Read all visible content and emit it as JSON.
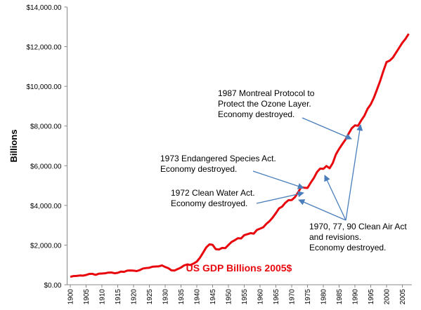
{
  "chart_data": {
    "type": "line",
    "title": "US GDP Billions 2005$",
    "ylabel": "Billions",
    "x": [
      1900,
      1901,
      1902,
      1903,
      1904,
      1905,
      1906,
      1907,
      1908,
      1909,
      1910,
      1911,
      1912,
      1913,
      1914,
      1915,
      1916,
      1917,
      1918,
      1919,
      1920,
      1921,
      1922,
      1923,
      1924,
      1925,
      1926,
      1927,
      1928,
      1929,
      1930,
      1931,
      1932,
      1933,
      1934,
      1935,
      1936,
      1937,
      1938,
      1939,
      1940,
      1941,
      1942,
      1943,
      1944,
      1945,
      1946,
      1947,
      1948,
      1949,
      1950,
      1951,
      1952,
      1953,
      1954,
      1955,
      1956,
      1957,
      1958,
      1959,
      1960,
      1961,
      1962,
      1963,
      1964,
      1965,
      1966,
      1967,
      1968,
      1969,
      1970,
      1971,
      1972,
      1973,
      1974,
      1975,
      1976,
      1977,
      1978,
      1979,
      1980,
      1981,
      1982,
      1983,
      1984,
      1985,
      1986,
      1987,
      1988,
      1989,
      1990,
      1991,
      1992,
      1993,
      1994,
      1995,
      1996,
      1997,
      1998,
      1999,
      2000,
      2001,
      2002,
      2003,
      2004,
      2005,
      2006,
      2007
    ],
    "series": [
      {
        "name": "US GDP Billions 2005$",
        "color": "#e8070d",
        "values": [
          400,
          440,
          445,
          465,
          460,
          490,
          545,
          550,
          500,
          555,
          565,
          580,
          610,
          620,
          580,
          600,
          660,
          650,
          710,
          720,
          710,
          690,
          740,
          820,
          840,
          860,
          910,
          920,
          930,
          977,
          893,
          835,
          725,
          716,
          794,
          865,
          977,
          1027,
          993,
          1072,
          1166,
          1366,
          1618,
          1883,
          2035,
          2012,
          1793,
          1776,
          1855,
          1845,
          2006,
          2161,
          2244,
          2347,
          2332,
          2500,
          2550,
          2601,
          2577,
          2762,
          2830,
          2897,
          3072,
          3207,
          3392,
          3610,
          3845,
          3942,
          4133,
          4262,
          4270,
          4413,
          4648,
          4917,
          4890,
          4880,
          5141,
          5377,
          5677,
          5855,
          5839,
          5987,
          5871,
          6136,
          6577,
          6849,
          7087,
          7313,
          7614,
          7886,
          8034,
          8015,
          8287,
          8523,
          8871,
          9094,
          9434,
          9854,
          10284,
          10780,
          11226,
          11300,
          11450,
          11700,
          11950,
          12200,
          12400,
          12650
        ]
      }
    ],
    "xlim": [
      1899,
      2008
    ],
    "xticks": [
      1900,
      1905,
      1910,
      1915,
      1920,
      1925,
      1930,
      1935,
      1940,
      1945,
      1950,
      1955,
      1960,
      1965,
      1970,
      1975,
      1980,
      1985,
      1990,
      1995,
      2000,
      2005
    ],
    "ylim": [
      0,
      14000
    ],
    "yticks": [
      {
        "value": 0,
        "label": "$0.00"
      },
      {
        "value": 2000,
        "label": "$2,000.00"
      },
      {
        "value": 4000,
        "label": "$4,000.00"
      },
      {
        "value": 6000,
        "label": "$6,000.00"
      },
      {
        "value": 8000,
        "label": "$8,000.00"
      },
      {
        "value": 10000,
        "label": "$10,000.00"
      },
      {
        "value": 12000,
        "label": "$12,000.00"
      },
      {
        "value": 14000,
        "label": "$14,000.00"
      }
    ],
    "annotations": [
      {
        "text": [
          "1987 Montreal Protocol to",
          "Protect the Ozone Layer.",
          "Economy destroyed."
        ]
      },
      {
        "text": [
          "1973 Endangered Species Act.",
          "Economy destroyed."
        ]
      },
      {
        "text": [
          "1972 Clean Water Act.",
          "Economy destroyed."
        ]
      },
      {
        "text": [
          "1970, 77, 90 Clean Air Act",
          "and revisions.",
          "Economy destroyed."
        ]
      }
    ]
  }
}
